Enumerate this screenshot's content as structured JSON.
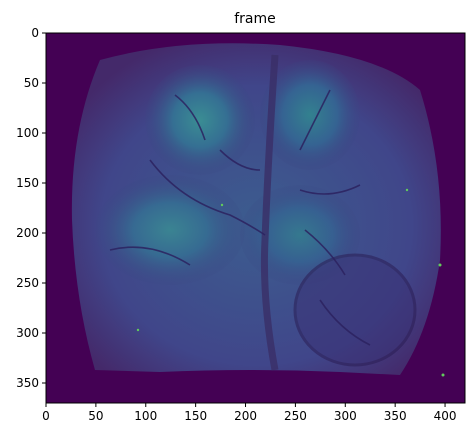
{
  "title": "frame",
  "image": {
    "description_kind": "viridis-colormap grayscale brain-surface frame",
    "width_data": 420,
    "height_data": 370,
    "colormap": "viridis"
  },
  "axes": {
    "x_ticks": [
      "0",
      "50",
      "100",
      "150",
      "200",
      "250",
      "300",
      "350",
      "400"
    ],
    "y_ticks": [
      "0",
      "50",
      "100",
      "150",
      "200",
      "250",
      "300",
      "350"
    ]
  },
  "colors": {
    "background_dark": "#440154",
    "mid_dark": "#3b2f6e",
    "mid": "#3f4a8a",
    "bright": "#2c7a8e",
    "highlight": "#35958b"
  }
}
